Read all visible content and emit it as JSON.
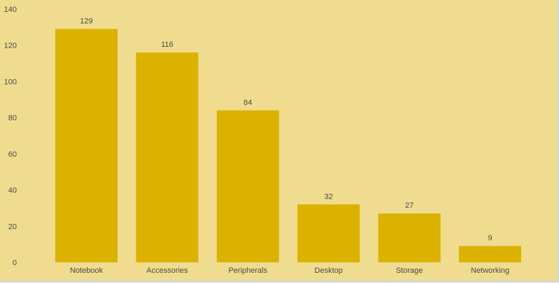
{
  "chart_data": {
    "type": "bar",
    "categories": [
      "Notebook",
      "Accessories",
      "Peripherals",
      "Desktop",
      "Storage",
      "Networking"
    ],
    "values": [
      129,
      116,
      84,
      32,
      27,
      9
    ],
    "title": "",
    "xlabel": "",
    "ylabel": "",
    "ylim": [
      0,
      140
    ],
    "yticks": [
      0,
      20,
      40,
      60,
      80,
      100,
      120,
      140
    ],
    "grid": false,
    "legend": "none",
    "data_labels": true
  },
  "colors": {
    "background": "#efdc8e",
    "bar": "#dbb200",
    "text": "#4a4a4a"
  }
}
